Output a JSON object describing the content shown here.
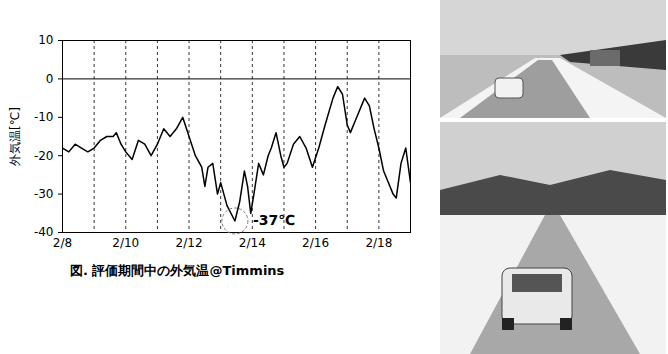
{
  "chart_data": {
    "type": "line",
    "caption": "図. 評価期間中の外気温@Timmins",
    "y_label": "外気温[℃]",
    "x": [
      8,
      8.2,
      8.4,
      8.6,
      8.8,
      9,
      9.2,
      9.4,
      9.6,
      9.7,
      9.85,
      10,
      10.2,
      10.4,
      10.6,
      10.8,
      11,
      11.2,
      11.4,
      11.6,
      11.8,
      12,
      12.2,
      12.4,
      12.5,
      12.6,
      12.75,
      12.9,
      13,
      13.2,
      13.45,
      13.6,
      13.75,
      13.85,
      13.95,
      14.05,
      14.2,
      14.35,
      14.5,
      14.6,
      14.75,
      14.9,
      15,
      15.1,
      15.3,
      15.5,
      15.7,
      15.9,
      16.1,
      16.3,
      16.55,
      16.7,
      16.85,
      17,
      17.1,
      17.3,
      17.55,
      17.7,
      17.85,
      18,
      18.15,
      18.3,
      18.45,
      18.55,
      18.7,
      18.85,
      18.95,
      19
    ],
    "values": [
      -18,
      -19,
      -17,
      -18,
      -19,
      -18,
      -16,
      -15,
      -15,
      -14,
      -17,
      -19,
      -21,
      -16,
      -17,
      -20,
      -17,
      -13,
      -15,
      -13,
      -10,
      -15,
      -20,
      -23,
      -28,
      -23,
      -22,
      -30,
      -27,
      -33,
      -37,
      -32,
      -24,
      -28,
      -35,
      -30,
      -22,
      -25,
      -20,
      -18,
      -14,
      -20,
      -23,
      -22,
      -17,
      -15,
      -18,
      -23,
      -18,
      -12,
      -5,
      -2,
      -4,
      -12,
      -14,
      -10,
      -5,
      -7,
      -13,
      -18,
      -24,
      -27,
      -30,
      -31,
      -22,
      -18,
      -24,
      -27
    ],
    "color": "#000000",
    "xlim": [
      8,
      19
    ],
    "xticks": [
      {
        "value": 8,
        "label": "2/8"
      },
      {
        "value": 10,
        "label": "2/10"
      },
      {
        "value": 12,
        "label": "2/12"
      },
      {
        "value": 14,
        "label": "2/14"
      },
      {
        "value": 16,
        "label": "2/16"
      },
      {
        "value": 18,
        "label": "2/18"
      }
    ],
    "ylim": [
      -40,
      10
    ],
    "yticks": [
      -40,
      -30,
      -20,
      -10,
      0,
      10
    ],
    "grid": "x",
    "annotations": [
      {
        "text": "-37℃",
        "x": 13.45,
        "y": -37
      }
    ]
  }
}
